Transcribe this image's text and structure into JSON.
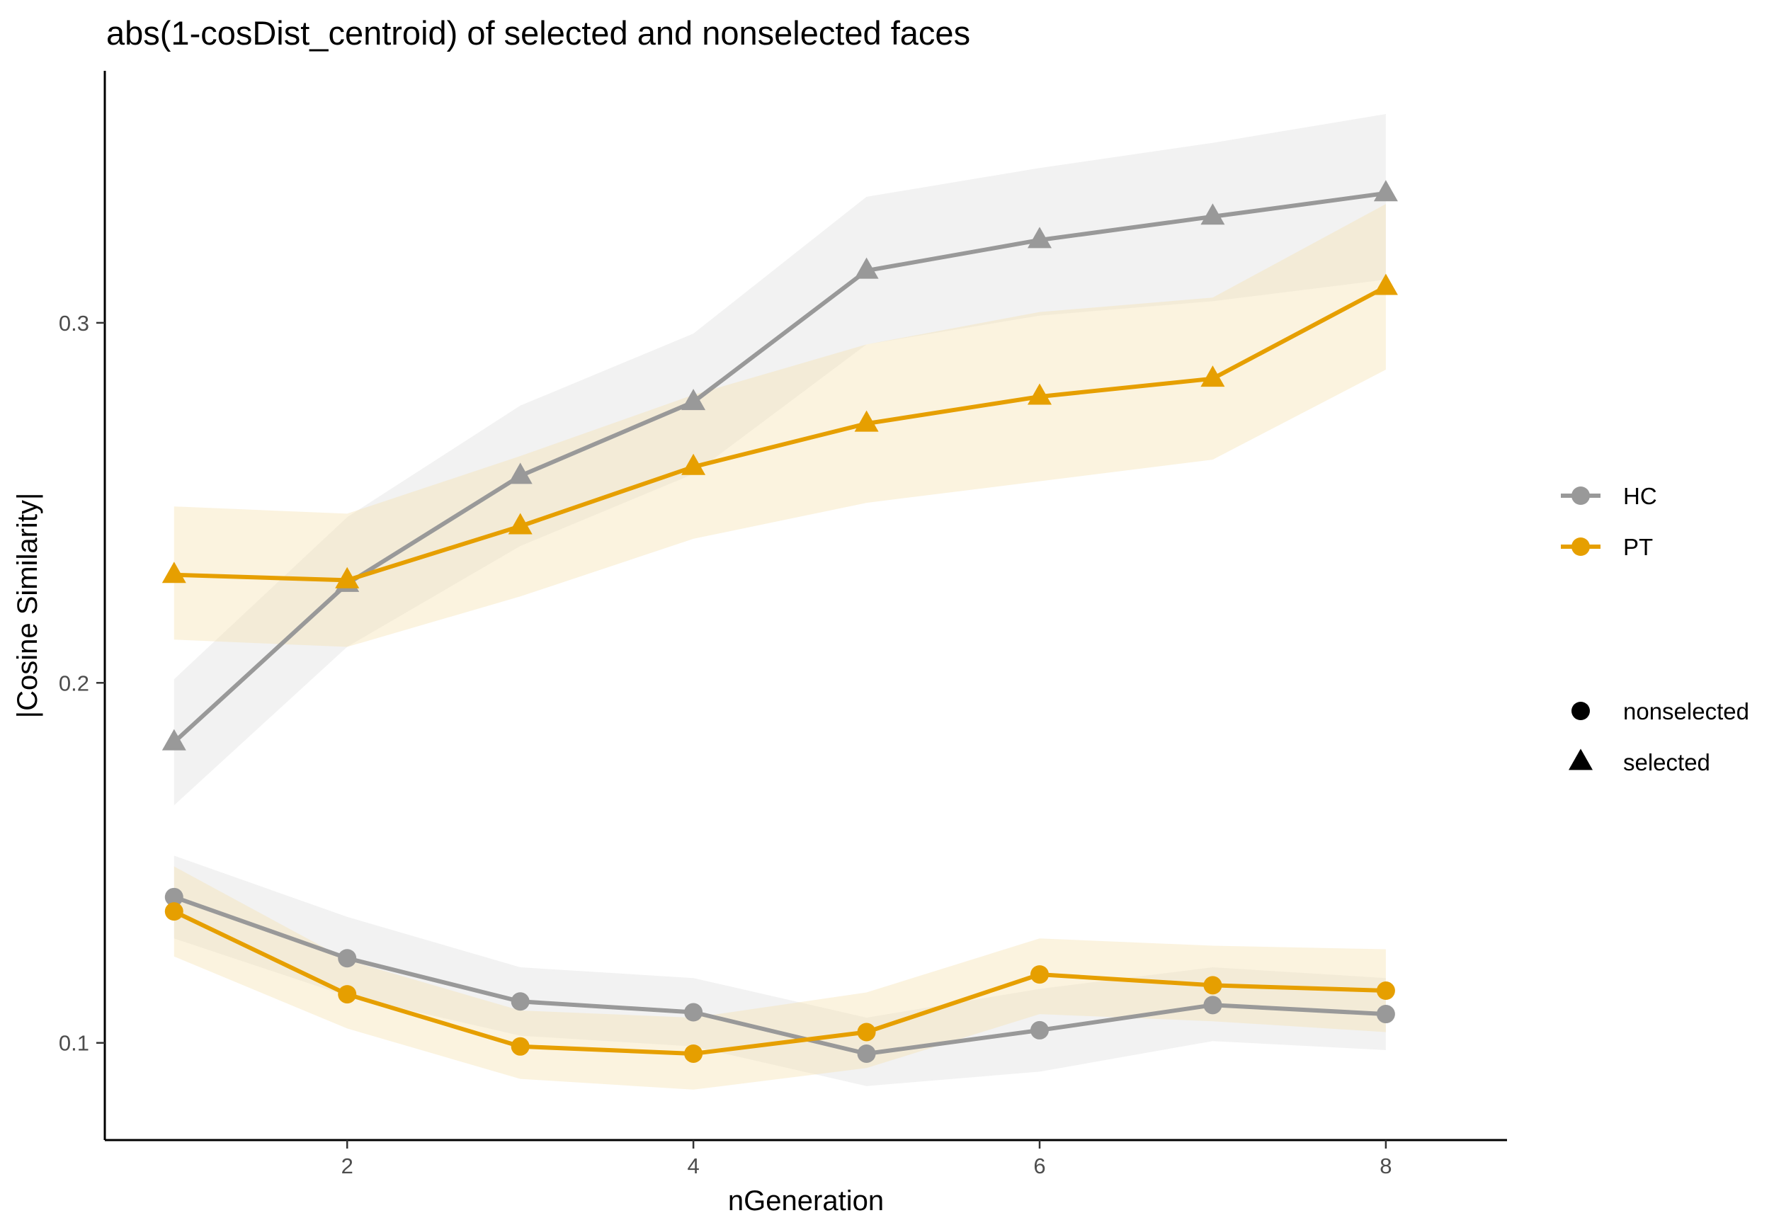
{
  "chart_data": {
    "type": "line",
    "title": "abs(1-cosDist_centroid) of selected and nonselected faces",
    "xlabel": "nGeneration",
    "ylabel": "|Cosine Similarity|",
    "x": [
      1,
      2,
      3,
      4,
      5,
      6,
      7,
      8
    ],
    "xlim": [
      0.6,
      8.7
    ],
    "ylim": [
      0.073,
      0.37
    ],
    "xticks": [
      2,
      4,
      6,
      8
    ],
    "yticks": [
      0.1,
      0.2,
      0.3
    ],
    "xtick_labels": [
      "2",
      "4",
      "6",
      "8"
    ],
    "ytick_labels": [
      "0.1",
      "0.2",
      "0.3"
    ],
    "grid": false,
    "legend_position": "right",
    "colors": {
      "HC": "#999999",
      "PT": "#E69F00"
    },
    "legend": {
      "group": [
        {
          "label": "HC",
          "color": "#999999"
        },
        {
          "label": "PT",
          "color": "#E69F00"
        }
      ],
      "shape": [
        {
          "label": "nonselected",
          "shape": "circle"
        },
        {
          "label": "selected",
          "shape": "triangle"
        }
      ]
    },
    "series": [
      {
        "group": "HC",
        "condition": "selected",
        "shape": "triangle",
        "values": [
          0.1835,
          0.2275,
          0.2575,
          0.278,
          0.3145,
          0.323,
          0.3295,
          0.336
        ],
        "lower": [
          0.166,
          0.21,
          0.238,
          0.258,
          0.294,
          0.302,
          0.306,
          0.312
        ],
        "upper": [
          0.201,
          0.246,
          0.277,
          0.297,
          0.335,
          0.343,
          0.35,
          0.358
        ]
      },
      {
        "group": "PT",
        "condition": "selected",
        "shape": "triangle",
        "values": [
          0.23,
          0.2285,
          0.2435,
          0.26,
          0.272,
          0.2795,
          0.2845,
          0.31
        ],
        "lower": [
          0.212,
          0.21,
          0.224,
          0.24,
          0.25,
          0.256,
          0.262,
          0.287
        ],
        "upper": [
          0.249,
          0.247,
          0.263,
          0.28,
          0.294,
          0.303,
          0.307,
          0.333
        ]
      },
      {
        "group": "HC",
        "condition": "nonselected",
        "shape": "circle",
        "values": [
          0.1405,
          0.1235,
          0.1115,
          0.1085,
          0.097,
          0.1035,
          0.1105,
          0.108
        ],
        "lower": [
          0.129,
          0.113,
          0.102,
          0.099,
          0.088,
          0.092,
          0.1005,
          0.098
        ],
        "upper": [
          0.152,
          0.135,
          0.121,
          0.118,
          0.107,
          0.115,
          0.121,
          0.118
        ]
      },
      {
        "group": "PT",
        "condition": "nonselected",
        "shape": "circle",
        "values": [
          0.1365,
          0.1135,
          0.099,
          0.097,
          0.103,
          0.119,
          0.116,
          0.1145
        ],
        "lower": [
          0.124,
          0.104,
          0.09,
          0.087,
          0.093,
          0.108,
          0.106,
          0.103
        ],
        "upper": [
          0.149,
          0.123,
          0.109,
          0.107,
          0.114,
          0.129,
          0.127,
          0.126
        ]
      }
    ]
  }
}
